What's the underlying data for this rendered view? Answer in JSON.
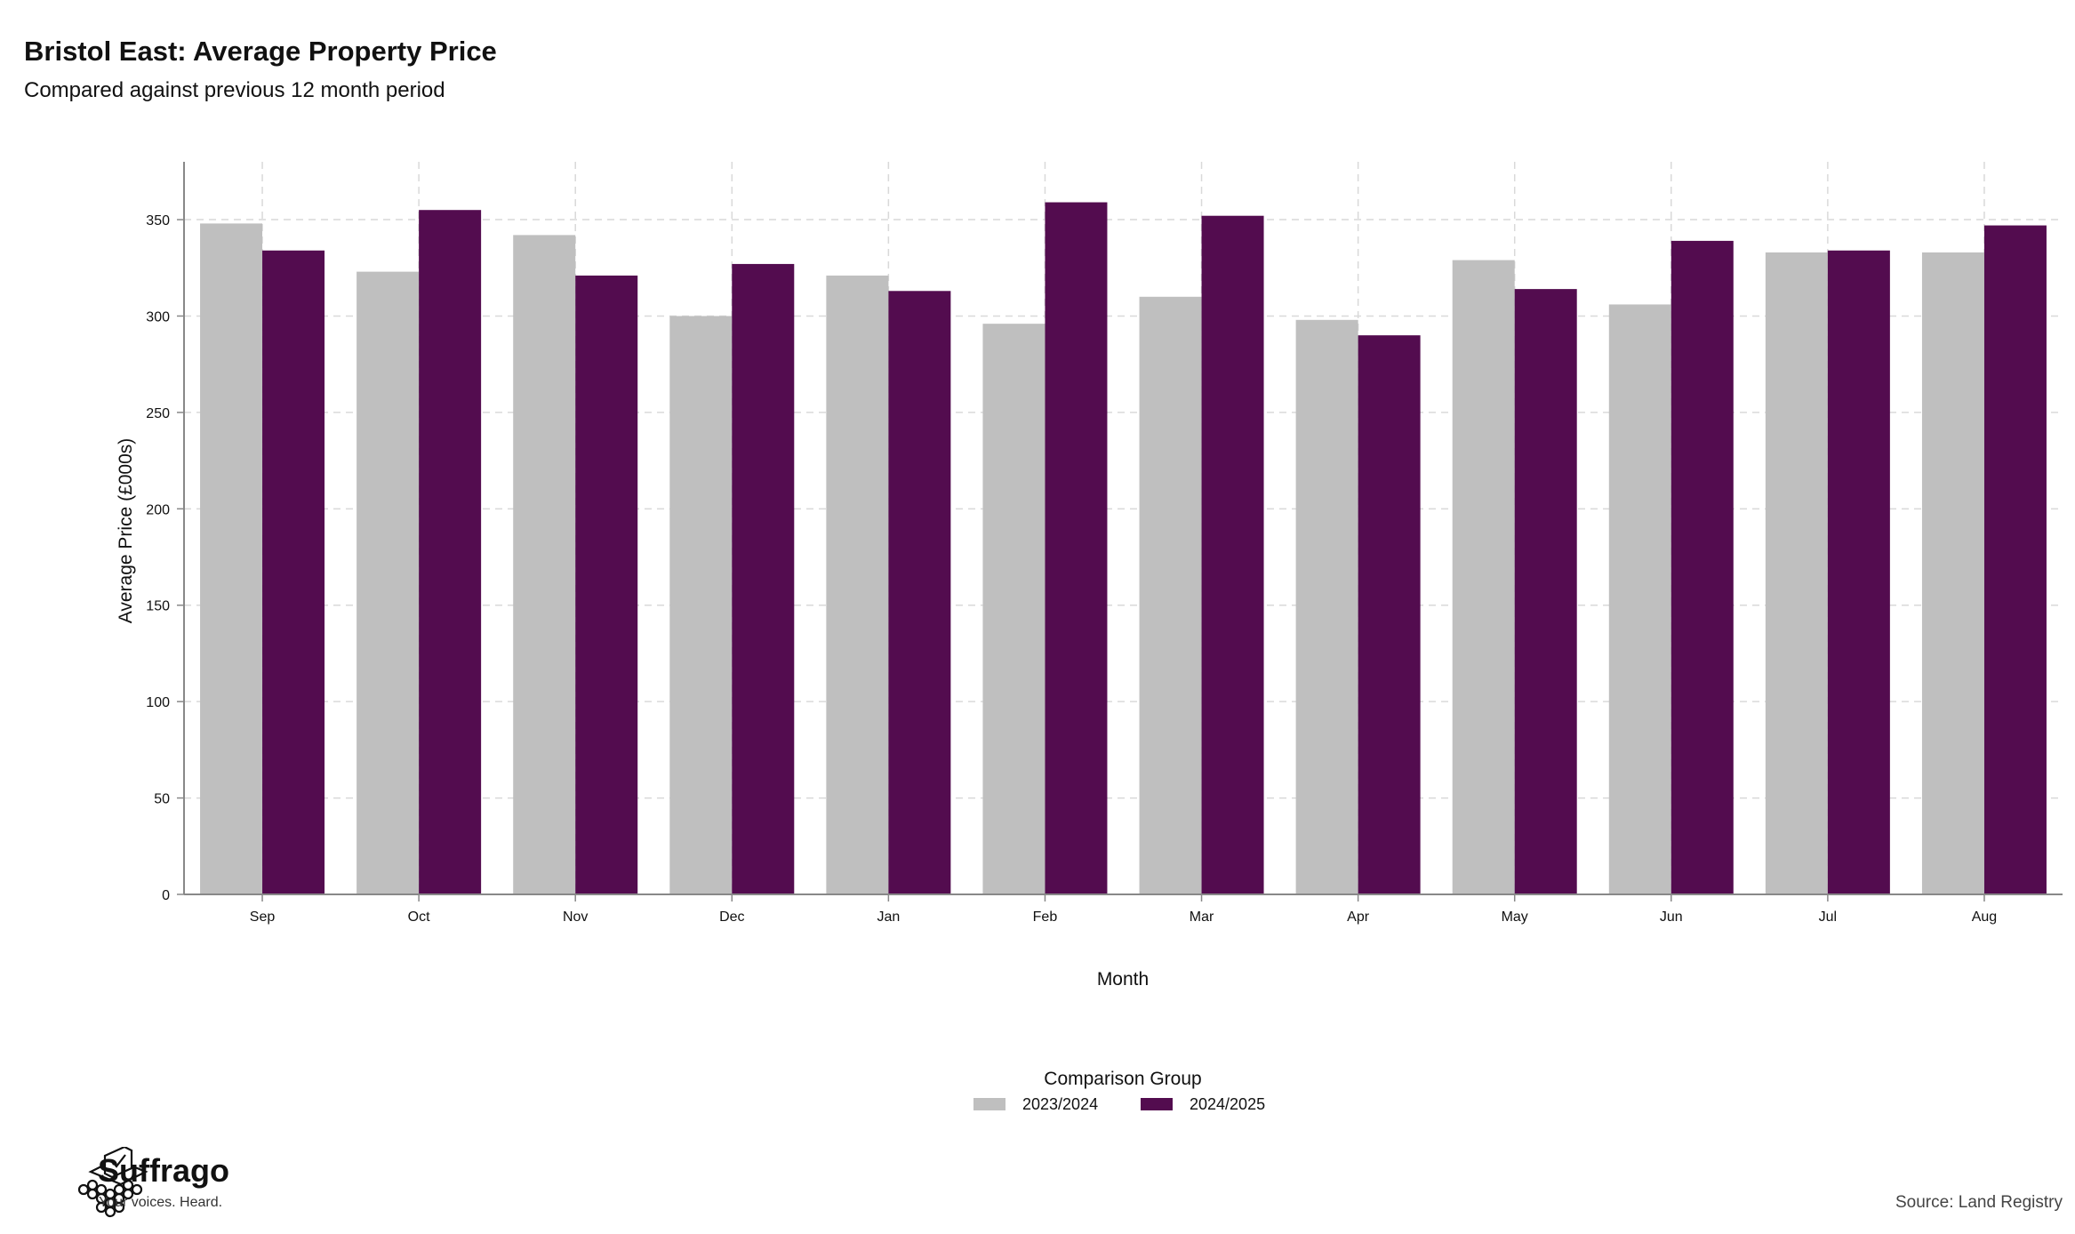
{
  "title": "Bristol East: Average Property Price",
  "subtitle": "Compared against previous 12 month period",
  "source": "Source: Land Registry",
  "brand": {
    "name": "Suffrago",
    "tagline": "Your voices. Heard."
  },
  "chart_data": {
    "type": "bar",
    "xlabel": "Month",
    "ylabel": "Average Price (£000s)",
    "ylim": [
      0,
      380
    ],
    "yticks": [
      0,
      50,
      100,
      150,
      200,
      250,
      300,
      350
    ],
    "grid": true,
    "legend": {
      "title": "Comparison Group",
      "placement": "bottom-center"
    },
    "categories": [
      "Sep",
      "Oct",
      "Nov",
      "Dec",
      "Jan",
      "Feb",
      "Mar",
      "Apr",
      "May",
      "Jun",
      "Jul",
      "Aug"
    ],
    "series": [
      {
        "name": "2023/2024",
        "color": "#bfbfbf",
        "values": [
          348,
          323,
          342,
          300,
          321,
          296,
          310,
          298,
          329,
          306,
          333,
          333
        ]
      },
      {
        "name": "2024/2025",
        "color": "#530c4f",
        "values": [
          334,
          355,
          321,
          327,
          313,
          359,
          352,
          290,
          314,
          339,
          334,
          347
        ]
      }
    ]
  }
}
